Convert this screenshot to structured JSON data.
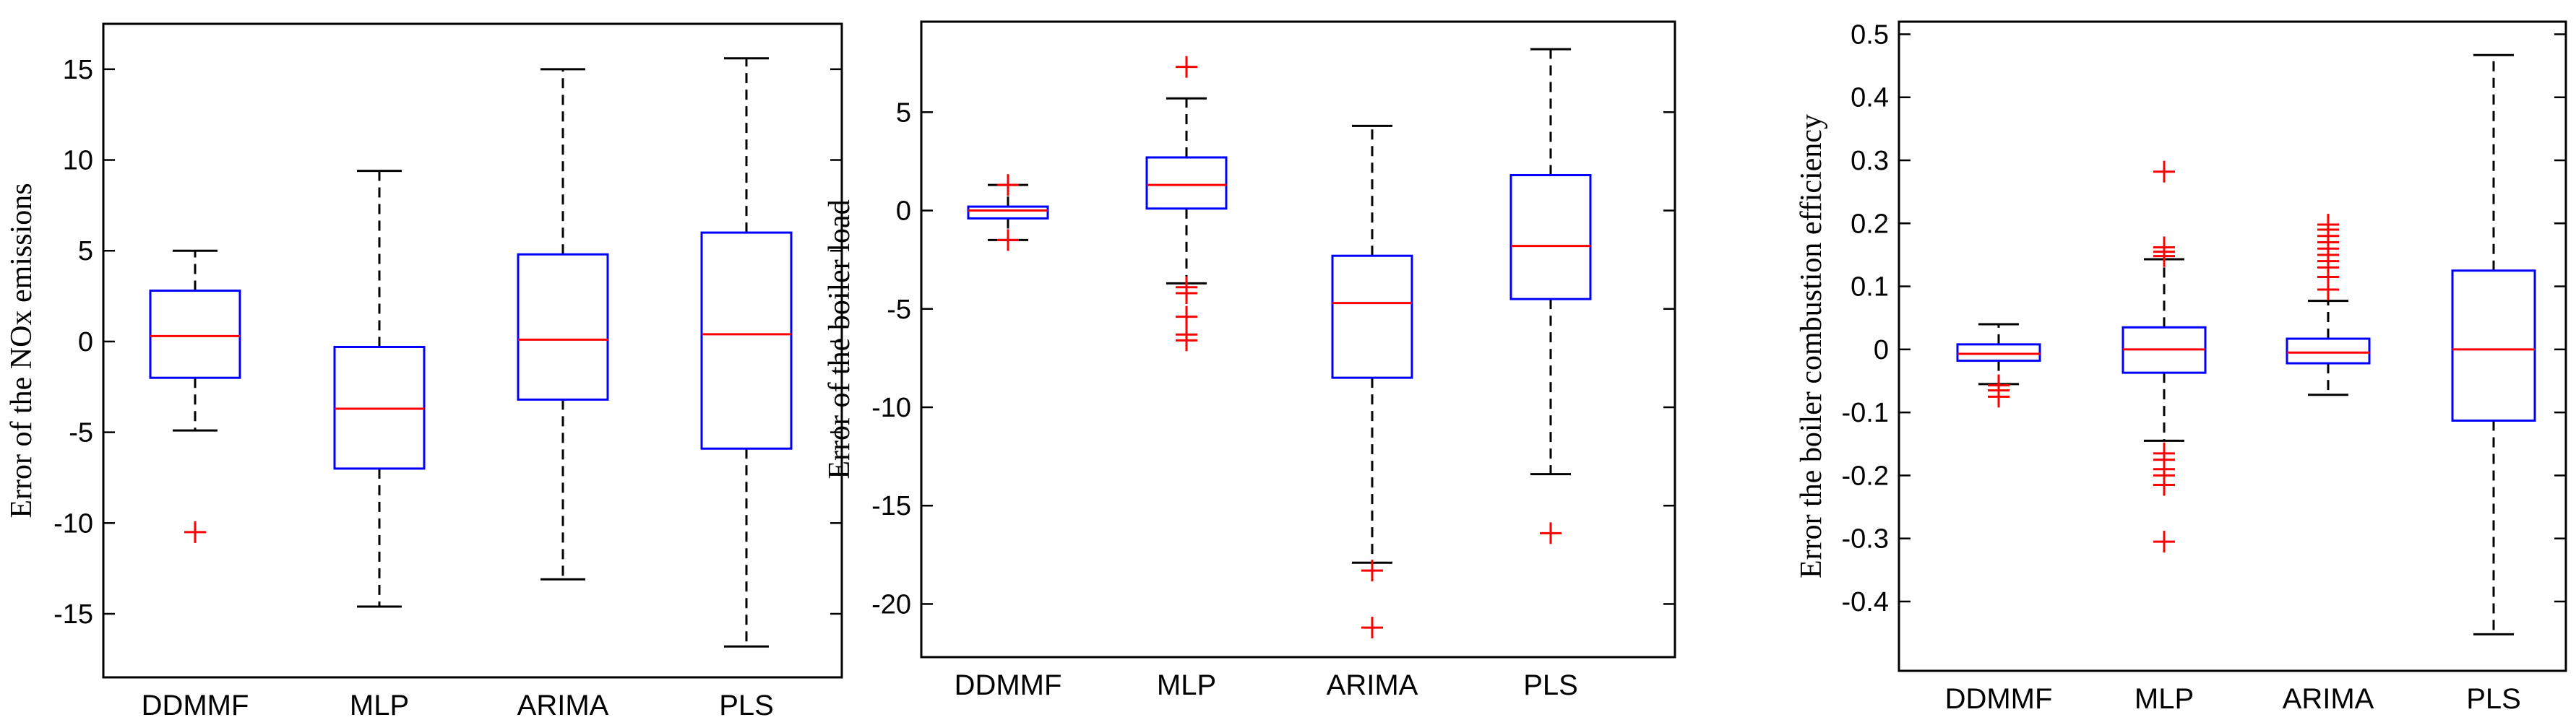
{
  "chart_data": [
    {
      "type": "boxplot",
      "categories": [
        "DDMMF",
        "MLP",
        "ARIMA",
        "PLS"
      ],
      "ylabel": "Error of the NOx emissions",
      "ylim": [
        -18.5,
        17.5
      ],
      "yticks": [
        -15,
        -10,
        -5,
        0,
        5,
        10,
        15
      ],
      "ytick_labels": [
        "-15",
        "-10",
        "-5",
        "0",
        "5",
        "10",
        "15"
      ],
      "boxes": [
        {
          "whisker_low": -4.9,
          "q1": -2.0,
          "median": 0.3,
          "q3": 2.8,
          "whisker_high": 5.0,
          "outliers": [
            -10.5
          ]
        },
        {
          "whisker_low": -14.6,
          "q1": -7.0,
          "median": -3.7,
          "q3": -0.3,
          "whisker_high": 9.4,
          "outliers": []
        },
        {
          "whisker_low": -13.1,
          "q1": -3.2,
          "median": 0.1,
          "q3": 4.8,
          "whisker_high": 15.0,
          "outliers": []
        },
        {
          "whisker_low": -16.8,
          "q1": -5.9,
          "median": 0.4,
          "q3": 6.0,
          "whisker_high": 15.6,
          "outliers": []
        }
      ]
    },
    {
      "type": "boxplot",
      "categories": [
        "DDMMF",
        "MLP",
        "ARIMA",
        "PLS"
      ],
      "ylabel": "Error of the boiler load",
      "ylim": [
        -22.7,
        9.6
      ],
      "yticks": [
        -20,
        -15,
        -10,
        -5,
        0,
        5
      ],
      "ytick_labels": [
        "-20",
        "-15",
        "-10",
        "-5",
        "0",
        "5"
      ],
      "boxes": [
        {
          "whisker_low": -1.5,
          "q1": -0.4,
          "median": 0.0,
          "q3": 0.2,
          "whisker_high": 1.3,
          "outliers": [
            -1.5,
            1.3
          ]
        },
        {
          "whisker_low": -3.7,
          "q1": 0.1,
          "median": 1.3,
          "q3": 2.7,
          "whisker_high": 5.7,
          "outliers": [
            7.3,
            -3.9,
            -4.2,
            -5.4,
            -6.3,
            -6.6
          ]
        },
        {
          "whisker_low": -17.9,
          "q1": -8.5,
          "median": -4.7,
          "q3": -2.3,
          "whisker_high": 4.3,
          "outliers": [
            -18.3,
            -21.2
          ]
        },
        {
          "whisker_low": -13.4,
          "q1": -4.5,
          "median": -1.8,
          "q3": 1.8,
          "whisker_high": 8.2,
          "outliers": [
            -16.4
          ]
        }
      ]
    },
    {
      "type": "boxplot",
      "categories": [
        "DDMMF",
        "MLP",
        "ARIMA",
        "PLS"
      ],
      "ylabel": "Error the boiler combustion efficiency",
      "ylim": [
        -0.51,
        0.52
      ],
      "yticks": [
        -0.4,
        -0.3,
        -0.2,
        -0.1,
        0,
        0.1,
        0.2,
        0.3,
        0.4,
        0.5
      ],
      "ytick_labels": [
        "-0.4",
        "-0.3",
        "-0.2",
        "-0.1",
        "0",
        "0.1",
        "0.2",
        "0.3",
        "0.4",
        "0.5"
      ],
      "boxes": [
        {
          "whisker_low": -0.055,
          "q1": -0.018,
          "median": -0.007,
          "q3": 0.008,
          "whisker_high": 0.04,
          "outliers": [
            -0.057,
            -0.065,
            -0.075
          ]
        },
        {
          "whisker_low": -0.145,
          "q1": -0.037,
          "median": 0.0,
          "q3": 0.035,
          "whisker_high": 0.143,
          "outliers": [
            0.282,
            0.162,
            0.155,
            0.148,
            -0.165,
            -0.175,
            -0.19,
            -0.2,
            -0.215,
            -0.305
          ]
        },
        {
          "whisker_low": -0.072,
          "q1": -0.022,
          "median": -0.005,
          "q3": 0.017,
          "whisker_high": 0.077,
          "outliers": [
            0.095,
            0.115,
            0.13,
            0.14,
            0.15,
            0.16,
            0.17,
            0.18,
            0.19,
            0.198
          ]
        },
        {
          "whisker_low": -0.452,
          "q1": -0.113,
          "median": 0.0,
          "q3": 0.125,
          "whisker_high": 0.467,
          "outliers": []
        }
      ]
    }
  ]
}
